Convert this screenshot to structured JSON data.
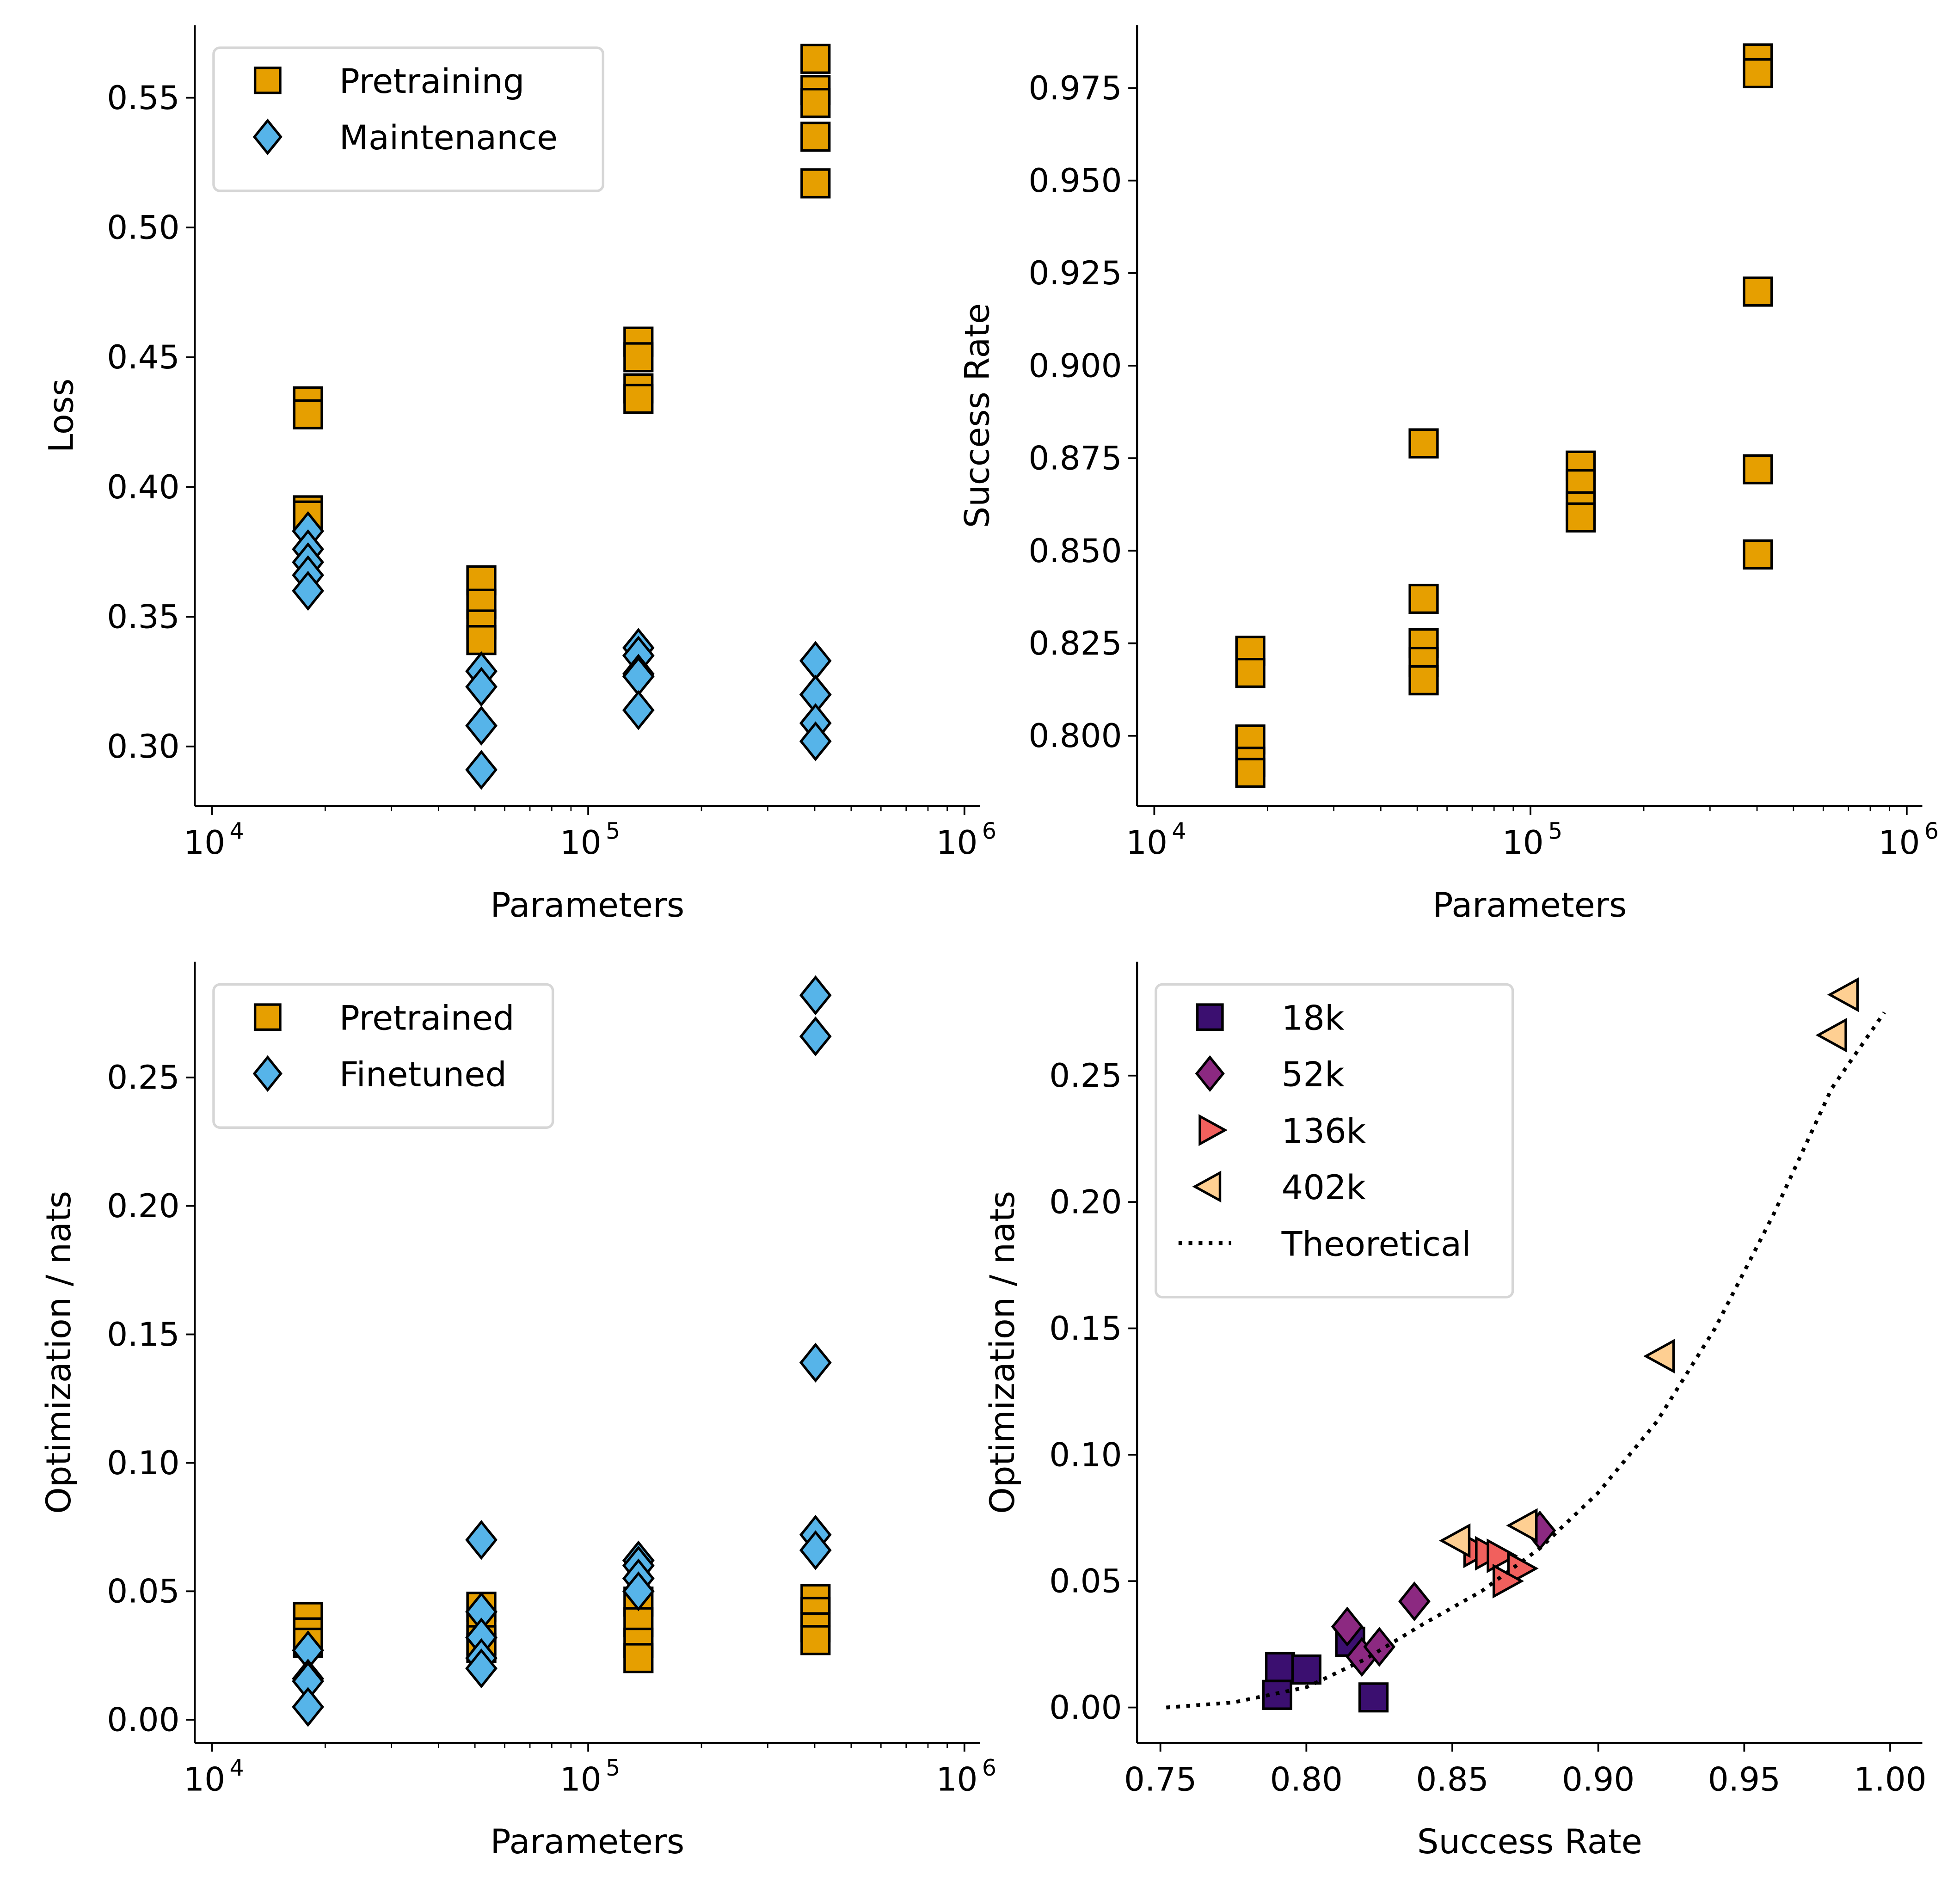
{
  "chart_data": [
    {
      "id": "tl",
      "type": "scatter",
      "title": "",
      "xlabel": "Parameters",
      "ylabel": "Loss",
      "xscale": "log",
      "xlim": [
        9000,
        1100000
      ],
      "ylim": [
        0.277,
        0.578
      ],
      "xticks": [
        {
          "v": 10000,
          "base": "10",
          "exp": "4"
        },
        {
          "v": 100000,
          "base": "10",
          "exp": "5"
        },
        {
          "v": 1000000,
          "base": "10",
          "exp": "6"
        }
      ],
      "yticks": [
        0.3,
        0.35,
        0.4,
        0.45,
        0.5,
        0.55
      ],
      "ytick_labels": [
        "0.30",
        "0.35",
        "0.40",
        "0.45",
        "0.50",
        "0.55"
      ],
      "legend": "top-left",
      "series": [
        {
          "name": "Pretraining",
          "marker": "square",
          "color": "#E69F00",
          "points": [
            [
              18000,
              0.433
            ],
            [
              18000,
              0.428
            ],
            [
              18000,
              0.391
            ],
            [
              18000,
              0.389
            ],
            [
              52000,
              0.364
            ],
            [
              52000,
              0.355
            ],
            [
              52000,
              0.347
            ],
            [
              52000,
              0.341
            ],
            [
              136000,
              0.456
            ],
            [
              136000,
              0.45
            ],
            [
              136000,
              0.438
            ],
            [
              136000,
              0.434
            ],
            [
              402000,
              0.565
            ],
            [
              402000,
              0.553
            ],
            [
              402000,
              0.548
            ],
            [
              402000,
              0.535
            ],
            [
              402000,
              0.517
            ]
          ]
        },
        {
          "name": "Maintenance",
          "marker": "diamond",
          "color": "#56B4E9",
          "points": [
            [
              18000,
              0.383
            ],
            [
              18000,
              0.376
            ],
            [
              18000,
              0.371
            ],
            [
              18000,
              0.366
            ],
            [
              18000,
              0.36
            ],
            [
              52000,
              0.329
            ],
            [
              52000,
              0.323
            ],
            [
              52000,
              0.308
            ],
            [
              52000,
              0.291
            ],
            [
              136000,
              0.338
            ],
            [
              136000,
              0.335
            ],
            [
              136000,
              0.328
            ],
            [
              136000,
              0.327
            ],
            [
              136000,
              0.314
            ],
            [
              402000,
              0.333
            ],
            [
              402000,
              0.32
            ],
            [
              402000,
              0.309
            ],
            [
              402000,
              0.302
            ]
          ]
        }
      ]
    },
    {
      "id": "tr",
      "type": "scatter",
      "title": "",
      "xlabel": "Parameters",
      "ylabel": "Success Rate",
      "xscale": "log",
      "xlim": [
        9000,
        1100000
      ],
      "ylim": [
        0.781,
        0.992
      ],
      "xticks": [
        {
          "v": 10000,
          "base": "10",
          "exp": "4"
        },
        {
          "v": 100000,
          "base": "10",
          "exp": "5"
        },
        {
          "v": 1000000,
          "base": "10",
          "exp": "6"
        }
      ],
      "yticks": [
        0.8,
        0.825,
        0.85,
        0.875,
        0.9,
        0.925,
        0.95,
        0.975
      ],
      "ytick_labels": [
        "0.800",
        "0.825",
        "0.850",
        "0.875",
        "0.900",
        "0.925",
        "0.950",
        "0.975"
      ],
      "legend": "none",
      "series": [
        {
          "name": "Success Rate",
          "marker": "square",
          "color": "#E69F00",
          "points": [
            [
              18000,
              0.823
            ],
            [
              18000,
              0.817
            ],
            [
              18000,
              0.799
            ],
            [
              18000,
              0.793
            ],
            [
              18000,
              0.79
            ],
            [
              52000,
              0.879
            ],
            [
              52000,
              0.837
            ],
            [
              52000,
              0.825
            ],
            [
              52000,
              0.82
            ],
            [
              52000,
              0.815
            ],
            [
              136000,
              0.873
            ],
            [
              136000,
              0.868
            ],
            [
              136000,
              0.862
            ],
            [
              136000,
              0.859
            ],
            [
              402000,
              0.983
            ],
            [
              402000,
              0.979
            ],
            [
              402000,
              0.92
            ],
            [
              402000,
              0.872
            ],
            [
              402000,
              0.849
            ]
          ]
        }
      ]
    },
    {
      "id": "bl",
      "type": "scatter",
      "title": "",
      "xlabel": "Parameters",
      "ylabel": "Optimization / nats",
      "xscale": "log",
      "xlim": [
        9000,
        1100000
      ],
      "ylim": [
        -0.009,
        0.295
      ],
      "xticks": [
        {
          "v": 10000,
          "base": "10",
          "exp": "4"
        },
        {
          "v": 100000,
          "base": "10",
          "exp": "5"
        },
        {
          "v": 1000000,
          "base": "10",
          "exp": "6"
        }
      ],
      "yticks": [
        0.0,
        0.05,
        0.1,
        0.15,
        0.2,
        0.25
      ],
      "ytick_labels": [
        "0.00",
        "0.05",
        "0.10",
        "0.15",
        "0.20",
        "0.25"
      ],
      "legend": "top-left",
      "series": [
        {
          "name": "Pretrained",
          "marker": "square",
          "color": "#E69F00",
          "points": [
            [
              18000,
              0.04
            ],
            [
              18000,
              0.034
            ],
            [
              18000,
              0.03
            ],
            [
              52000,
              0.044
            ],
            [
              52000,
              0.037
            ],
            [
              52000,
              0.031
            ],
            [
              52000,
              0.028
            ],
            [
              136000,
              0.046
            ],
            [
              136000,
              0.038
            ],
            [
              136000,
              0.03
            ],
            [
              136000,
              0.024
            ],
            [
              402000,
              0.047
            ],
            [
              402000,
              0.042
            ],
            [
              402000,
              0.036
            ],
            [
              402000,
              0.031
            ]
          ]
        },
        {
          "name": "Finetuned",
          "marker": "diamond",
          "color": "#56B4E9",
          "points": [
            [
              18000,
              0.027
            ],
            [
              18000,
              0.016
            ],
            [
              18000,
              0.015
            ],
            [
              18000,
              0.005
            ],
            [
              52000,
              0.07
            ],
            [
              52000,
              0.042
            ],
            [
              52000,
              0.032
            ],
            [
              52000,
              0.024
            ],
            [
              52000,
              0.02
            ],
            [
              136000,
              0.062
            ],
            [
              136000,
              0.06
            ],
            [
              136000,
              0.055
            ],
            [
              136000,
              0.05
            ],
            [
              402000,
              0.282
            ],
            [
              402000,
              0.266
            ],
            [
              402000,
              0.139
            ],
            [
              402000,
              0.072
            ],
            [
              402000,
              0.066
            ]
          ]
        }
      ]
    },
    {
      "id": "br",
      "type": "scatter",
      "title": "",
      "xlabel": "Success Rate",
      "ylabel": "Optimization / nats",
      "xscale": "linear",
      "xlim": [
        0.742,
        1.011
      ],
      "ylim": [
        -0.014,
        0.295
      ],
      "xticks": [
        {
          "v": 0.75,
          "label": "0.75"
        },
        {
          "v": 0.8,
          "label": "0.80"
        },
        {
          "v": 0.85,
          "label": "0.85"
        },
        {
          "v": 0.9,
          "label": "0.90"
        },
        {
          "v": 0.95,
          "label": "0.95"
        },
        {
          "v": 1.0,
          "label": "1.00"
        }
      ],
      "yticks": [
        0.0,
        0.05,
        0.1,
        0.15,
        0.2,
        0.25
      ],
      "ytick_labels": [
        "0.00",
        "0.05",
        "0.10",
        "0.15",
        "0.20",
        "0.25"
      ],
      "legend": "top-left",
      "series": [
        {
          "name": "18k",
          "marker": "square",
          "color": "#3B0F70",
          "points": [
            [
              0.791,
              0.016
            ],
            [
              0.8,
              0.015
            ],
            [
              0.79,
              0.005
            ],
            [
              0.823,
              0.004
            ],
            [
              0.815,
              0.026
            ]
          ]
        },
        {
          "name": "52k",
          "marker": "diamond",
          "color": "#8C2981",
          "points": [
            [
              0.814,
              0.032
            ],
            [
              0.819,
              0.02
            ],
            [
              0.825,
              0.024
            ],
            [
              0.837,
              0.042
            ],
            [
              0.88,
              0.07
            ]
          ]
        },
        {
          "name": "136k",
          "marker": "triangle-right",
          "color": "#F1605D",
          "points": [
            [
              0.858,
              0.062
            ],
            [
              0.862,
              0.061
            ],
            [
              0.866,
              0.06
            ],
            [
              0.873,
              0.055
            ],
            [
              0.868,
              0.05
            ]
          ]
        },
        {
          "name": "402k",
          "marker": "triangle-left",
          "color": "#FECF92",
          "points": [
            [
              0.985,
              0.282
            ],
            [
              0.981,
              0.266
            ],
            [
              0.922,
              0.139
            ],
            [
              0.875,
              0.072
            ],
            [
              0.852,
              0.066
            ]
          ]
        },
        {
          "name": "Theoretical",
          "marker": "line-dotted",
          "color": "#000000",
          "curve": {
            "formula": "-ln(1 - (s - 0.75)/0.25 * ...)",
            "x_range": [
              0.752,
              0.998
            ],
            "points": [
              [
                0.752,
                0.0
              ],
              [
                0.775,
                0.002
              ],
              [
                0.8,
                0.008
              ],
              [
                0.82,
                0.019
              ],
              [
                0.84,
                0.033
              ],
              [
                0.86,
                0.046
              ],
              [
                0.88,
                0.063
              ],
              [
                0.9,
                0.085
              ],
              [
                0.92,
                0.113
              ],
              [
                0.94,
                0.15
              ],
              [
                0.96,
                0.195
              ],
              [
                0.98,
                0.245
              ],
              [
                0.998,
                0.275
              ]
            ]
          }
        }
      ]
    }
  ]
}
